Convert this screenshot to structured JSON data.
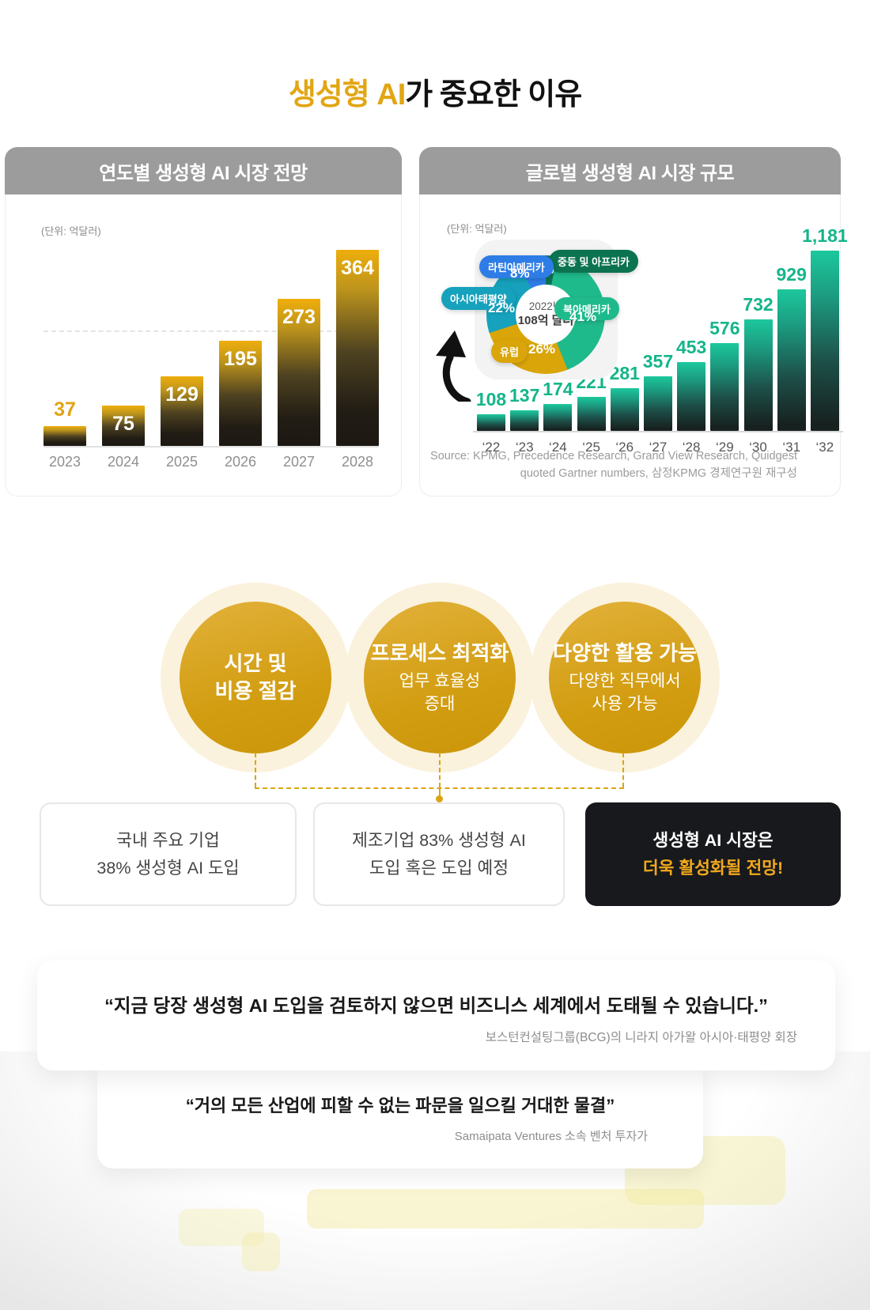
{
  "title": {
    "highlight": "생성형 AI",
    "rest": "가 중요한 이유"
  },
  "colors": {
    "accent_gold": "#E2A613",
    "green_label": "#14B58A",
    "header_gray": "#9C9C9C",
    "black_box_bg": "#17191D",
    "black_box_highlight": "#F1A81C",
    "dashed_connector": "#DBA512"
  },
  "cards": {
    "forecast": {
      "header": "연도별 생성형 AI 시장 전망",
      "unit": "(단위: 억달러)"
    },
    "global": {
      "header": "글로벌 생성형 AI 시장 규모",
      "unit": "(단위: 억달러)",
      "source_line1": "Source: KPMG, Precedence Research, Grand View Research, Quidgest",
      "source_line2": "quoted Gartner numbers, 삼정KPMG 경제연구원 재구성"
    }
  },
  "donut_center": {
    "line1": "2022년",
    "line2": "108억 달러"
  },
  "chart_data": [
    {
      "type": "bar",
      "title": "연도별 생성형 AI 시장 전망",
      "ylabel": "억달러",
      "categories": [
        "2023",
        "2024",
        "2025",
        "2026",
        "2027",
        "2028"
      ],
      "values": [
        37,
        75,
        129,
        195,
        273,
        364
      ],
      "ylim": [
        0,
        380
      ],
      "grid": "single dashed horizontal line"
    },
    {
      "type": "bar",
      "title": "글로벌 생성형 AI 시장 규모",
      "ylabel": "억달러",
      "categories": [
        "‘22",
        "‘23",
        "‘24",
        "‘25",
        "‘26",
        "‘27",
        "‘28",
        "‘29",
        "‘30",
        "‘31",
        "‘32"
      ],
      "values": [
        108,
        137,
        174,
        221,
        281,
        357,
        453,
        576,
        732,
        929,
        1181
      ],
      "ylim": [
        0,
        1250
      ],
      "grid": "off"
    },
    {
      "type": "pie",
      "title": "2022년 108억 달러",
      "segments": [
        {
          "label": "중동 및 아프리카",
          "value": 3,
          "color": "#0C7351"
        },
        {
          "label": "북아메리카",
          "value": 41,
          "color": "#1FBA8C"
        },
        {
          "label": "유럽",
          "value": 26,
          "color": "#D9A508"
        },
        {
          "label": "아시아태평양",
          "value": 22,
          "color": "#16A1BC"
        },
        {
          "label": "라틴아메리카",
          "value": 8,
          "color": "#2E7DE6"
        }
      ]
    }
  ],
  "benefits": [
    {
      "title_lines": [
        "시간 및",
        "비용 절감"
      ],
      "sub_lines": []
    },
    {
      "title_lines": [
        "프로세스 최적화"
      ],
      "sub_lines": [
        "업무 효율성",
        "증대"
      ]
    },
    {
      "title_lines": [
        "다양한 활용 가능"
      ],
      "sub_lines": [
        "다양한 직무에서",
        "사용 가능"
      ]
    }
  ],
  "stats": [
    {
      "line1": "국내 주요 기업",
      "line2": "38% 생성형 AI 도입"
    },
    {
      "line1": "제조기업 83% 생성형 AI",
      "line2": "도입 혹은 도입 예정"
    },
    {
      "line1": "생성형 AI 시장은",
      "line2": "더욱 활성화될 전망!"
    }
  ],
  "quotes": [
    {
      "text": "“지금 당장 생성형 AI 도입을 검토하지 않으면 비즈니스 세계에서 도태될 수 있습니다.”",
      "attribution": "보스턴컨설팅그룹(BCG)의 니라지 아가왈 아시아·태평양 회장"
    },
    {
      "text": "“거의 모든 산업에 피할 수 없는 파문을 일으킬 거대한 물결”",
      "attribution": "Samaipata Ventures 소속 벤처 투자가"
    }
  ]
}
